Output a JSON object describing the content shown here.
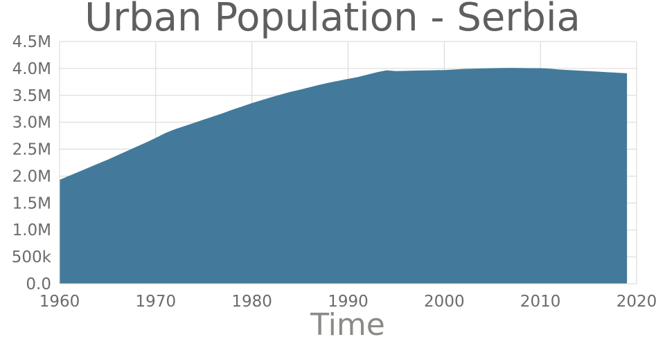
{
  "chart_data": {
    "type": "area",
    "title": "Urban Population - Serbia",
    "xlabel": "Time",
    "ylabel": "",
    "xlim": [
      1960,
      2020
    ],
    "ylim": [
      0,
      4500000
    ],
    "x_ticks": [
      1960,
      1970,
      1980,
      1990,
      2000,
      2010,
      2020
    ],
    "y_ticks": [
      {
        "value": 0,
        "label": "0.0"
      },
      {
        "value": 500000,
        "label": "500k"
      },
      {
        "value": 1000000,
        "label": "1.0M"
      },
      {
        "value": 1500000,
        "label": "1.5M"
      },
      {
        "value": 2000000,
        "label": "2.0M"
      },
      {
        "value": 2500000,
        "label": "2.5M"
      },
      {
        "value": 3000000,
        "label": "3.0M"
      },
      {
        "value": 3500000,
        "label": "3.5M"
      },
      {
        "value": 4000000,
        "label": "4.0M"
      },
      {
        "value": 4500000,
        "label": "4.5M"
      }
    ],
    "grid": true,
    "series": [
      {
        "color": "#437a9b",
        "x": [
          1960,
          1961,
          1962,
          1963,
          1964,
          1965,
          1966,
          1967,
          1968,
          1969,
          1970,
          1971,
          1972,
          1973,
          1974,
          1975,
          1976,
          1977,
          1978,
          1979,
          1980,
          1981,
          1982,
          1983,
          1984,
          1985,
          1986,
          1987,
          1988,
          1989,
          1990,
          1991,
          1992,
          1993,
          1994,
          1995,
          1996,
          1997,
          1998,
          1999,
          2000,
          2001,
          2002,
          2003,
          2004,
          2005,
          2006,
          2007,
          2008,
          2009,
          2010,
          2011,
          2012,
          2013,
          2014,
          2015,
          2016,
          2017,
          2018,
          2019
        ],
        "values": [
          1930000,
          2005000,
          2080000,
          2155000,
          2230000,
          2305000,
          2385000,
          2465000,
          2545000,
          2625000,
          2710000,
          2800000,
          2870000,
          2930000,
          2990000,
          3050000,
          3110000,
          3170000,
          3235000,
          3295000,
          3355000,
          3410000,
          3465000,
          3515000,
          3565000,
          3605000,
          3650000,
          3695000,
          3735000,
          3770000,
          3805000,
          3840000,
          3885000,
          3930000,
          3965000,
          3950000,
          3955000,
          3960000,
          3963000,
          3967000,
          3970000,
          3980000,
          3990000,
          3995000,
          4000000,
          4005000,
          4008000,
          4010000,
          4008000,
          4005000,
          4005000,
          3995000,
          3980000,
          3970000,
          3960000,
          3950000,
          3940000,
          3930000,
          3920000,
          3910000
        ]
      }
    ]
  }
}
